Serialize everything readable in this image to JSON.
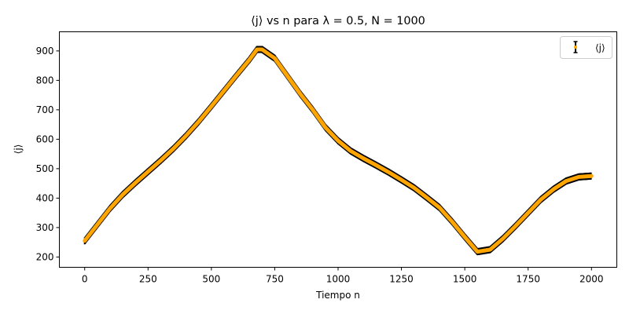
{
  "chart_data": {
    "type": "line",
    "title": "⟨j⟩ vs n para λ = 0.5, N = 1000",
    "xlabel": "Tiempo n",
    "ylabel": "⟨j⟩",
    "xlim": [
      -100,
      2100
    ],
    "ylim": [
      165,
      965
    ],
    "xticks": [
      0,
      250,
      500,
      750,
      1000,
      1250,
      1500,
      1750,
      2000
    ],
    "xtick_labels": [
      "0",
      "250",
      "500",
      "750",
      "1000",
      "1250",
      "1500",
      "1750",
      "2000"
    ],
    "yticks": [
      200,
      300,
      400,
      500,
      600,
      700,
      800,
      900
    ],
    "ytick_labels": [
      "200",
      "300",
      "400",
      "500",
      "600",
      "700",
      "800",
      "900"
    ],
    "grid": false,
    "legend_position": "top-right",
    "series": [
      {
        "name": "⟨j⟩",
        "color": "#ffa500",
        "errorbar_color": "#000000",
        "error": 12,
        "x": [
          0,
          50,
          100,
          150,
          200,
          250,
          300,
          350,
          400,
          450,
          500,
          550,
          600,
          650,
          680,
          700,
          750,
          800,
          850,
          900,
          950,
          1000,
          1050,
          1100,
          1150,
          1200,
          1250,
          1300,
          1350,
          1400,
          1450,
          1500,
          1550,
          1600,
          1650,
          1700,
          1750,
          1800,
          1850,
          1900,
          1950,
          2000
        ],
        "y": [
          255,
          310,
          365,
          412,
          452,
          490,
          528,
          568,
          612,
          660,
          712,
          765,
          818,
          870,
          905,
          905,
          875,
          815,
          755,
          700,
          640,
          595,
          560,
          535,
          512,
          488,
          462,
          435,
          402,
          368,
          320,
          268,
          218,
          225,
          262,
          305,
          350,
          395,
          430,
          458,
          472,
          475
        ]
      }
    ]
  }
}
